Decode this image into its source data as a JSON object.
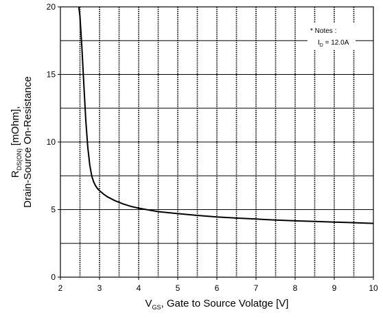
{
  "chart_data": {
    "type": "line",
    "title": "",
    "xlabel": {
      "main": "V",
      "sub": "GS",
      "rest": ", Gate to Source Volatge [V]"
    },
    "ylabel": {
      "line1_main": "R",
      "line1_sub": "DS(ON)",
      "line1_rest": " [mOhm],",
      "line2": "Drain-Source On-Resistance"
    },
    "xlim": [
      2,
      10
    ],
    "ylim": [
      0,
      20
    ],
    "x_ticks": [
      2,
      3,
      4,
      5,
      6,
      7,
      8,
      9,
      10
    ],
    "y_ticks": [
      0,
      5,
      10,
      15,
      20
    ],
    "x_tick_labels": [
      "2",
      "3",
      "4",
      "5",
      "6",
      "7",
      "8",
      "9",
      "10"
    ],
    "y_tick_labels": [
      "0",
      "5",
      "10",
      "15",
      "20"
    ],
    "grid": true,
    "annotation": {
      "line1": "* Notes :",
      "line2_main": "I",
      "line2_sub": "D",
      "line2_rest": " = 12.0A",
      "position": "top-right"
    },
    "series": [
      {
        "x": [
          2.47,
          2.5,
          2.55,
          2.6,
          2.65,
          2.7,
          2.75,
          2.8,
          2.85,
          2.9,
          2.95,
          3.0,
          3.1,
          3.2,
          3.4,
          3.6,
          3.8,
          4.0,
          4.5,
          5.0,
          5.5,
          6.0,
          6.5,
          7.0,
          7.5,
          8.0,
          8.5,
          9.0,
          9.5,
          10.0
        ],
        "y": [
          20.0,
          19.3,
          17.0,
          14.2,
          11.6,
          9.6,
          8.3,
          7.5,
          7.05,
          6.75,
          6.55,
          6.4,
          6.15,
          5.95,
          5.65,
          5.42,
          5.24,
          5.1,
          4.85,
          4.7,
          4.57,
          4.45,
          4.37,
          4.3,
          4.23,
          4.17,
          4.12,
          4.07,
          4.03,
          3.98
        ],
        "color": "#000000"
      }
    ]
  }
}
